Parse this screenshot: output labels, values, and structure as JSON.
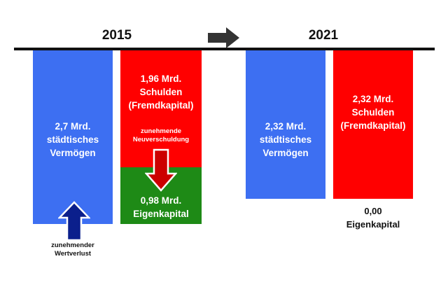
{
  "years": {
    "left": "2015",
    "right": "2021"
  },
  "colors": {
    "assets": "#3d6ff2",
    "debt": "#ff0000",
    "equity": "#1e8a16",
    "line": "#111111",
    "down_arrow": "#cc0000",
    "up_arrow": "#0b1f8c",
    "transition_arrow": "#333333"
  },
  "icons": {
    "transition": "right-arrow-icon",
    "new_debt": "down-arrow-icon",
    "value_loss": "up-arrow-icon"
  },
  "bars_2015": {
    "assets": {
      "value_bn": 2.7,
      "lines": [
        "2,7 Mrd.",
        "städtisches",
        "Vermögen"
      ]
    },
    "debt": {
      "value_bn": 1.96,
      "lines": [
        "1,96 Mrd.",
        "Schulden",
        "(Fremdkapital)"
      ]
    },
    "debt_note": {
      "lines": [
        "zunehmende",
        "Neuverschuldung"
      ]
    },
    "equity": {
      "value_bn": 0.98,
      "lines": [
        "0,98 Mrd.",
        "Eigenkapital"
      ]
    },
    "assets_note": {
      "lines": [
        "zunehmender",
        "Wertverlust"
      ]
    }
  },
  "bars_2021": {
    "assets": {
      "value_bn": 2.32,
      "lines": [
        "2,32 Mrd.",
        "städtisches",
        "Vermögen"
      ]
    },
    "debt": {
      "value_bn": 2.32,
      "lines": [
        "2,32 Mrd.",
        "Schulden",
        "(Fremdkapital)"
      ]
    },
    "equity": {
      "value_bn": 0.0,
      "lines": [
        "0,00",
        "Eigenkapital"
      ]
    }
  }
}
